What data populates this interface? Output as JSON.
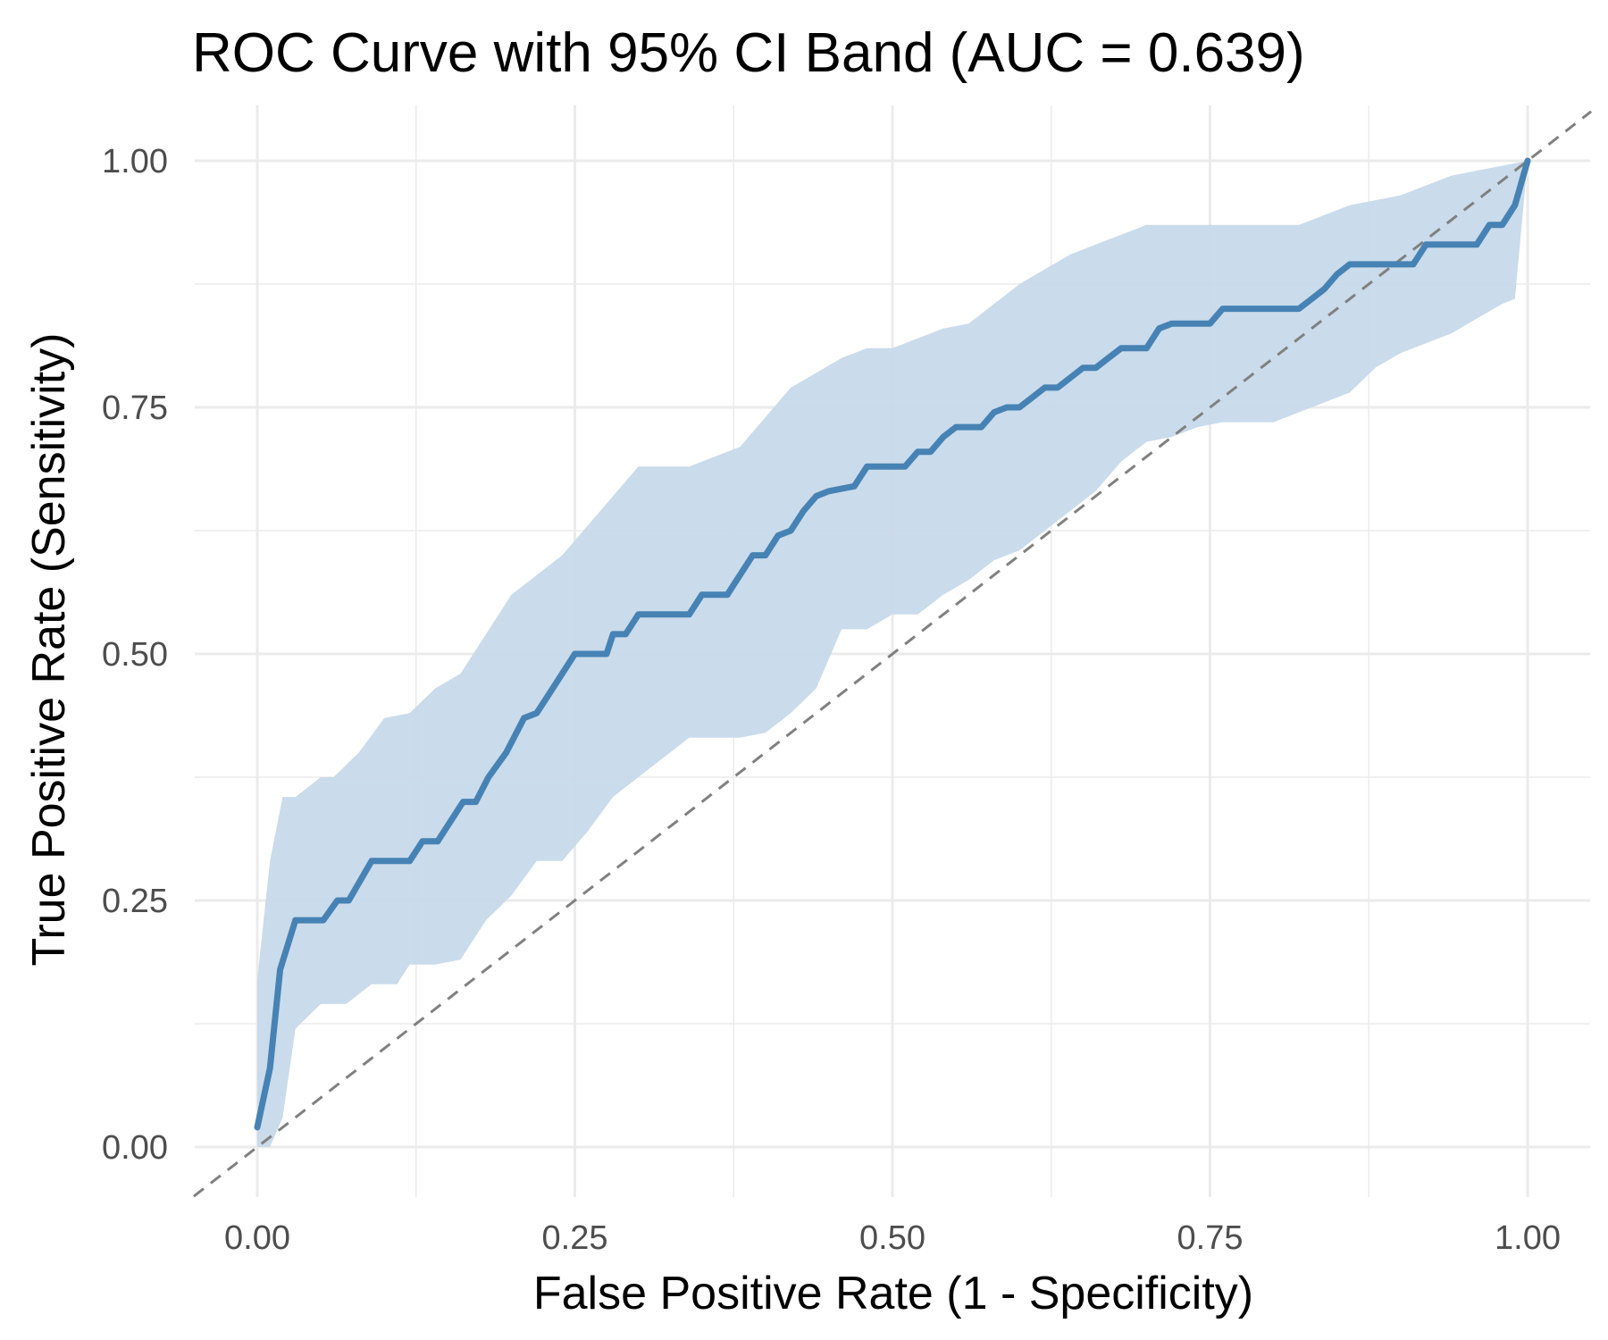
{
  "chart_data": {
    "type": "line",
    "title": "ROC Curve with 95% CI Band (AUC = 0.639)",
    "xlabel": "False Positive Rate (1 - Specificity)",
    "ylabel": "True Positive Rate (Sensitivity)",
    "xlim": [
      -0.05,
      1.05
    ],
    "ylim": [
      -0.05,
      1.05
    ],
    "x_ticks": [
      "0.00",
      "0.25",
      "0.50",
      "0.75",
      "1.00"
    ],
    "y_ticks": [
      "0.00",
      "0.25",
      "0.50",
      "0.75",
      "1.00"
    ],
    "grid": true,
    "legend": "none",
    "colors": {
      "curve": "#4682b4",
      "band": "#c7d9ea",
      "diagonal": "#808080",
      "grid": "#ebebeb"
    },
    "series": [
      {
        "kind": "roc_curve",
        "x": [
          0.0,
          0.01,
          0.018,
          0.03,
          0.052,
          0.063,
          0.072,
          0.09,
          0.12,
          0.13,
          0.142,
          0.162,
          0.172,
          0.182,
          0.196,
          0.21,
          0.22,
          0.23,
          0.25,
          0.275,
          0.28,
          0.29,
          0.3,
          0.34,
          0.35,
          0.37,
          0.39,
          0.4,
          0.41,
          0.42,
          0.43,
          0.44,
          0.45,
          0.47,
          0.48,
          0.51,
          0.52,
          0.53,
          0.54,
          0.55,
          0.57,
          0.58,
          0.59,
          0.6,
          0.61,
          0.62,
          0.63,
          0.64,
          0.65,
          0.66,
          0.67,
          0.68,
          0.7,
          0.71,
          0.72,
          0.73,
          0.75,
          0.76,
          0.78,
          0.82,
          0.83,
          0.84,
          0.85,
          0.86,
          0.87,
          0.9,
          0.91,
          0.92,
          0.95,
          0.96,
          0.97,
          0.98,
          0.99,
          1.0
        ],
        "y": [
          0.02,
          0.08,
          0.18,
          0.23,
          0.23,
          0.25,
          0.25,
          0.29,
          0.29,
          0.31,
          0.31,
          0.35,
          0.35,
          0.375,
          0.4,
          0.435,
          0.44,
          0.46,
          0.5,
          0.5,
          0.52,
          0.52,
          0.54,
          0.54,
          0.56,
          0.56,
          0.6,
          0.6,
          0.62,
          0.625,
          0.645,
          0.66,
          0.665,
          0.67,
          0.69,
          0.69,
          0.705,
          0.705,
          0.72,
          0.73,
          0.73,
          0.745,
          0.75,
          0.75,
          0.76,
          0.77,
          0.77,
          0.78,
          0.79,
          0.79,
          0.8,
          0.81,
          0.81,
          0.83,
          0.835,
          0.835,
          0.835,
          0.85,
          0.85,
          0.85,
          0.86,
          0.87,
          0.885,
          0.895,
          0.895,
          0.895,
          0.895,
          0.915,
          0.915,
          0.915,
          0.935,
          0.935,
          0.955,
          1.0
        ]
      },
      {
        "kind": "ci_upper",
        "x": [
          0.0,
          0.01,
          0.02,
          0.03,
          0.05,
          0.06,
          0.08,
          0.1,
          0.12,
          0.14,
          0.16,
          0.18,
          0.2,
          0.22,
          0.24,
          0.26,
          0.28,
          0.3,
          0.32,
          0.34,
          0.36,
          0.38,
          0.4,
          0.42,
          0.44,
          0.46,
          0.48,
          0.5,
          0.52,
          0.54,
          0.56,
          0.58,
          0.6,
          0.62,
          0.64,
          0.66,
          0.68,
          0.7,
          0.72,
          0.74,
          0.76,
          0.78,
          0.8,
          0.82,
          0.84,
          0.86,
          0.88,
          0.9,
          0.92,
          0.94,
          0.96,
          0.98,
          1.0
        ],
        "y": [
          0.17,
          0.29,
          0.355,
          0.355,
          0.375,
          0.375,
          0.4,
          0.435,
          0.44,
          0.465,
          0.48,
          0.52,
          0.56,
          0.58,
          0.6,
          0.63,
          0.66,
          0.69,
          0.69,
          0.69,
          0.7,
          0.71,
          0.74,
          0.77,
          0.785,
          0.8,
          0.81,
          0.81,
          0.82,
          0.83,
          0.835,
          0.855,
          0.875,
          0.89,
          0.905,
          0.915,
          0.925,
          0.935,
          0.935,
          0.935,
          0.935,
          0.935,
          0.935,
          0.935,
          0.945,
          0.955,
          0.96,
          0.965,
          0.975,
          0.985,
          0.99,
          0.995,
          1.0
        ]
      },
      {
        "kind": "ci_lower",
        "x": [
          0.0,
          0.01,
          0.02,
          0.03,
          0.05,
          0.07,
          0.09,
          0.11,
          0.12,
          0.14,
          0.16,
          0.18,
          0.2,
          0.22,
          0.24,
          0.26,
          0.28,
          0.3,
          0.32,
          0.34,
          0.36,
          0.38,
          0.4,
          0.42,
          0.44,
          0.46,
          0.48,
          0.5,
          0.52,
          0.54,
          0.56,
          0.58,
          0.6,
          0.62,
          0.64,
          0.66,
          0.68,
          0.7,
          0.72,
          0.74,
          0.76,
          0.78,
          0.8,
          0.82,
          0.84,
          0.86,
          0.88,
          0.9,
          0.92,
          0.94,
          0.96,
          0.98,
          0.99,
          1.0
        ],
        "y": [
          0.0,
          0.0,
          0.03,
          0.12,
          0.145,
          0.145,
          0.165,
          0.165,
          0.185,
          0.185,
          0.19,
          0.23,
          0.255,
          0.29,
          0.29,
          0.32,
          0.355,
          0.375,
          0.395,
          0.415,
          0.415,
          0.415,
          0.42,
          0.44,
          0.465,
          0.525,
          0.525,
          0.54,
          0.54,
          0.56,
          0.575,
          0.595,
          0.605,
          0.625,
          0.645,
          0.665,
          0.695,
          0.715,
          0.72,
          0.73,
          0.735,
          0.735,
          0.735,
          0.745,
          0.755,
          0.765,
          0.79,
          0.805,
          0.815,
          0.825,
          0.84,
          0.855,
          0.86,
          1.0
        ]
      },
      {
        "kind": "reference_diagonal",
        "x": [
          -0.05,
          1.05
        ],
        "y": [
          -0.05,
          1.05
        ]
      }
    ]
  }
}
